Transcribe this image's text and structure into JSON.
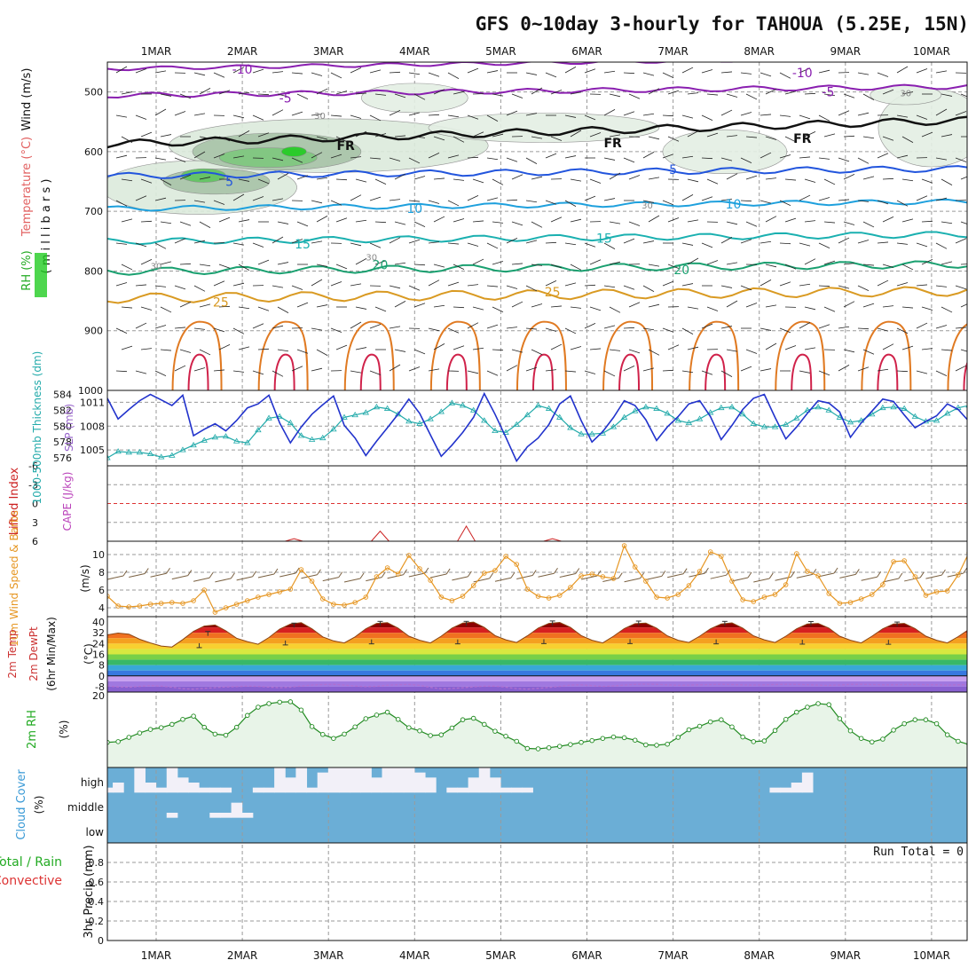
{
  "title": "GFS 0~10day 3-hourly for TAHOUA (5.25E, 15N)",
  "dates": [
    "1MAR",
    "2MAR",
    "3MAR",
    "4MAR",
    "5MAR",
    "6MAR",
    "7MAR",
    "8MAR",
    "9MAR",
    "10MAR"
  ],
  "colors": {
    "slp": "#2233cc",
    "thickness": "#22aaaa",
    "wind10m": "#e69622",
    "temp2m": "#8b4513",
    "dewpt": "#9966cc",
    "rh2m": "#228b22",
    "cloud_bg": "#6baed6",
    "lifted": "#cc2222",
    "cape": "#bb44bb",
    "rh_fill": "#b8d8b8"
  },
  "chart_data": [
    {
      "type": "contour",
      "panel": "upper_air",
      "ylabel": "( m i l l i b a r s )",
      "ylabel_parts": [
        "Wind (m/s)",
        "Temperature (°C)",
        "RH (%)"
      ],
      "y_ticks": [
        500,
        600,
        700,
        800,
        900,
        1000
      ],
      "ylim": [
        450,
        1000
      ],
      "isotherm_labels": [
        {
          "value": "-10",
          "date_frac": 1.0,
          "p": 462
        },
        {
          "value": "-10",
          "date_frac": 7.5,
          "p": 468
        },
        {
          "value": "-5",
          "date_frac": 1.5,
          "p": 510
        },
        {
          "value": "-5",
          "date_frac": 7.8,
          "p": 500
        },
        {
          "value": "FR",
          "date_frac": 2.2,
          "p": 590
        },
        {
          "value": "FR",
          "date_frac": 5.3,
          "p": 585
        },
        {
          "value": "FR",
          "date_frac": 7.5,
          "p": 578
        },
        {
          "value": "5",
          "date_frac": 0.85,
          "p": 650
        },
        {
          "value": "5",
          "date_frac": 6.0,
          "p": 630
        },
        {
          "value": "10",
          "date_frac": 3.0,
          "p": 695
        },
        {
          "value": "10",
          "date_frac": 6.7,
          "p": 688
        },
        {
          "value": "15",
          "date_frac": 1.7,
          "p": 755
        },
        {
          "value": "15",
          "date_frac": 5.2,
          "p": 745
        },
        {
          "value": "20",
          "date_frac": 2.6,
          "p": 790
        },
        {
          "value": "20",
          "date_frac": 6.1,
          "p": 798
        },
        {
          "value": "25",
          "date_frac": 0.75,
          "p": 852
        },
        {
          "value": "25",
          "date_frac": 4.6,
          "p": 835
        },
        {
          "value": "30",
          "date_frac": 1.9,
          "p": 538
        },
        {
          "value": "30",
          "date_frac": 8.7,
          "p": 500
        },
        {
          "value": "30",
          "date_frac": 2.5,
          "p": 775
        },
        {
          "value": "30",
          "date_frac": 5.7,
          "p": 688
        },
        {
          "value": "30",
          "date_frac": 0.0,
          "p": 790
        }
      ]
    },
    {
      "type": "line",
      "panel": "slp_thickness",
      "ylabel_left": "1000-500mb Thickness (dm)",
      "ylabel_right": "SLP (mb)",
      "thickness_ticks": [
        576,
        578,
        580,
        582,
        584
      ],
      "slp_ticks": [
        1005,
        1008,
        1011
      ],
      "ylim_thickness": [
        575,
        584.5
      ],
      "ylim_slp": [
        1003,
        1012.5
      ],
      "slp": [
        1011.5,
        1008.9,
        1010.1,
        1011.2,
        1012.0,
        1011.3,
        1010.6,
        1011.9,
        1006.8,
        1007.6,
        1008.3,
        1007.4,
        1008.7,
        1010.3,
        1010.8,
        1011.9,
        1008.4,
        1005.9,
        1007.9,
        1009.5,
        1010.7,
        1011.8,
        1008.1,
        1006.5,
        1004.3,
        1006.1,
        1007.8,
        1009.5,
        1011.4,
        1009.6,
        1006.9,
        1004.2,
        1005.6,
        1007.2,
        1009.1,
        1012.1,
        1009.5,
        1006.6,
        1003.6,
        1005.4,
        1006.5,
        1008.2,
        1010.8,
        1011.8,
        1008.7,
        1006.0,
        1007.3,
        1009.1,
        1011.2,
        1010.6,
        1008.8,
        1006.2,
        1007.9,
        1009.2,
        1010.8,
        1011.2,
        1009.2,
        1006.3,
        1008.1,
        1010.1,
        1011.5,
        1012.0,
        1009.1,
        1006.4,
        1007.9,
        1009.6,
        1011.2,
        1010.9,
        1009.8,
        1006.6,
        1008.4,
        1009.9,
        1011.4,
        1011.1,
        1009.4,
        1007.8,
        1008.6,
        1009.3,
        1010.8,
        1010.1,
        1008.6,
        1007.6,
        1009.4,
        1010.6
      ],
      "thickness": [
        576.0,
        576.8,
        576.7,
        576.7,
        576.5,
        576.1,
        576.3,
        577.0,
        577.6,
        578.2,
        578.6,
        578.7,
        578.1,
        577.9,
        579.5,
        581.0,
        581.2,
        580.4,
        578.8,
        578.3,
        578.5,
        579.6,
        581.1,
        581.4,
        581.7,
        582.4,
        582.2,
        581.5,
        580.6,
        580.3,
        580.9,
        581.8,
        582.9,
        582.6,
        582.0,
        580.7,
        579.4,
        579.2,
        580.2,
        581.4,
        582.6,
        582.2,
        581.1,
        579.8,
        579.0,
        579.0,
        579.1,
        579.9,
        581.1,
        581.9,
        582.4,
        582.2,
        581.6,
        580.7,
        580.4,
        580.9,
        581.7,
        582.3,
        582.4,
        581.5,
        580.3,
        579.9,
        579.9,
        580.2,
        581.0,
        582.0,
        582.4,
        582.0,
        581.1,
        580.5,
        580.7,
        581.5,
        582.3,
        582.4,
        582.2,
        581.2,
        580.6,
        580.7,
        581.6,
        582.3,
        582.6,
        582.4,
        582.1,
        581.4
      ]
    },
    {
      "type": "line",
      "panel": "stability",
      "ylabel": "Lifted Index",
      "ylabel_right": "CAPE (J/kg)",
      "y_ticks": [
        "-6",
        "-3",
        "0",
        "3",
        "6"
      ],
      "ylim": [
        -6,
        6
      ],
      "cape_spikes": [
        {
          "date_frac": 1.6,
          "value": 5.6
        },
        {
          "date_frac": 2.6,
          "value": 4.4
        },
        {
          "date_frac": 3.6,
          "value": 3.6
        },
        {
          "date_frac": 4.6,
          "value": 5.6
        }
      ]
    },
    {
      "type": "line",
      "panel": "wind10m",
      "ylabel": "10m Wind Speed & Barbs",
      "yunit": "(m/s)",
      "y_ticks": [
        4,
        6,
        8,
        10
      ],
      "ylim": [
        3,
        11.5
      ],
      "values": [
        5.3,
        4.2,
        4.1,
        4.2,
        4.4,
        4.5,
        4.6,
        4.5,
        4.8,
        6.0,
        3.5,
        4.0,
        4.4,
        4.8,
        5.2,
        5.5,
        5.8,
        6.1,
        8.3,
        7.0,
        5.0,
        4.4,
        4.3,
        4.6,
        5.2,
        7.5,
        8.5,
        7.8,
        9.9,
        8.4,
        7.1,
        5.2,
        4.8,
        5.3,
        6.5,
        7.9,
        8.2,
        9.8,
        8.9,
        6.1,
        5.3,
        5.1,
        5.4,
        6.3,
        7.6,
        7.8,
        7.5,
        7.3,
        11.0,
        8.6,
        7.0,
        5.2,
        5.1,
        5.5,
        6.5,
        8.1,
        10.3,
        9.8,
        7.0,
        4.9,
        4.7,
        5.2,
        5.5,
        6.6,
        10.1,
        8.1,
        7.6,
        5.6,
        4.5,
        4.6,
        5.0,
        5.5,
        6.6,
        9.2,
        9.3,
        7.5,
        5.4,
        5.8,
        5.9,
        7.7,
        10.2,
        10.8,
        9.4,
        7.0,
        5.7,
        5.4,
        5.3,
        5.2,
        5.6,
        5.9,
        6.1
      ]
    },
    {
      "type": "area",
      "panel": "temp2m",
      "ylabel_parts": [
        "2m Temp",
        "2m DewPt",
        "(6hr Min/Max)"
      ],
      "yunit": "(°C)",
      "y_ticks": [
        -8,
        0,
        8,
        16,
        24,
        32,
        40
      ],
      "ylim": [
        -12,
        44
      ],
      "temperature": [
        30.5,
        31.8,
        31.0,
        27.2,
        24.5,
        22.2,
        21.5,
        27.0,
        33.1,
        37.0,
        37.8,
        33.5,
        28.0,
        25.5,
        23.5,
        28.5,
        34.8,
        38.5,
        39.5,
        35.0,
        29.0,
        26.0,
        24.5,
        29.0,
        35.0,
        39.0,
        39.6,
        35.5,
        29.5,
        26.5,
        24.5,
        29.5,
        35.5,
        39.2,
        40.0,
        36.0,
        30.0,
        26.8,
        24.8,
        29.8,
        35.5,
        39.0,
        39.7,
        36.0,
        30.0,
        26.5,
        24.5,
        29.5,
        35.2,
        38.8,
        39.2,
        35.5,
        29.8,
        26.5,
        24.8,
        29.5,
        35.0,
        38.5,
        39.4,
        35.5,
        29.8,
        26.8,
        24.8,
        29.5,
        35.0,
        38.5,
        39.0,
        35.5,
        29.5,
        26.5,
        24.5,
        29.5,
        35.0,
        38.6,
        39.0,
        35.2,
        29.5,
        26.5,
        24.5,
        29.2,
        34.5,
        37.5,
        38.0,
        34.5,
        29.0,
        26.2,
        24.0,
        23.2
      ],
      "dewpoint": [
        -7.5,
        -8.2,
        -8.4,
        -7.8,
        -7.1,
        -7.6,
        -8.4,
        -9.5,
        -9.8,
        -9.2,
        -8.7,
        -8.2,
        -8.0,
        -7.5,
        -7.8,
        -8.3,
        -8.8,
        -8.4,
        -7.5,
        -6.8,
        -6.4,
        -6.2,
        -6.8,
        -7.5,
        -8.0,
        -7.7,
        -6.9,
        -6.5,
        -6.3,
        -7.0,
        -8.5,
        -9.6,
        -9.3,
        -8.8,
        -8.1,
        -7.6,
        -7.6,
        -8.4,
        -9.4,
        -9.8,
        -9.2,
        -8.6,
        -7.8,
        -6.8,
        -6.6,
        -7.2,
        -7.8,
        -7.4,
        -6.8,
        -6.3,
        -6.1,
        -6.3,
        -6.6,
        -6.9,
        -6.8,
        -6.6,
        -6.4,
        -6.2,
        -6.4,
        -6.6,
        -6.8,
        -6.6,
        -6.4,
        -6.2,
        -6.3,
        -6.5,
        -6.8,
        -7.0,
        -6.7,
        -6.3,
        -6.2,
        -6.4,
        -6.6,
        -6.6,
        -6.4,
        -6.3,
        -6.5,
        -6.6,
        -6.8,
        -6.6,
        -6.4,
        -6.3,
        -6.5,
        -6.8,
        -6.6,
        -6.4,
        -6.3,
        -6.5,
        -6.6
      ],
      "max_markers": [
        {
          "date_frac": 0.6,
          "value": 33.0
        },
        {
          "date_frac": 1.6,
          "value": 39.2
        },
        {
          "date_frac": 2.6,
          "value": 40.5
        },
        {
          "date_frac": 3.6,
          "value": 40.5
        },
        {
          "date_frac": 4.6,
          "value": 40.8
        },
        {
          "date_frac": 5.6,
          "value": 40.7
        },
        {
          "date_frac": 6.6,
          "value": 40.5
        },
        {
          "date_frac": 7.6,
          "value": 40.4
        },
        {
          "date_frac": 8.6,
          "value": 40.0
        },
        {
          "date_frac": 9.6,
          "value": 39.8
        }
      ],
      "min_markers": [
        {
          "date_frac": 0.5,
          "value": 21.0
        },
        {
          "date_frac": 1.5,
          "value": 23.0
        },
        {
          "date_frac": 2.5,
          "value": 23.8
        },
        {
          "date_frac": 3.5,
          "value": 23.8
        },
        {
          "date_frac": 4.5,
          "value": 24.0
        },
        {
          "date_frac": 5.5,
          "value": 24.0
        },
        {
          "date_frac": 6.5,
          "value": 23.8
        },
        {
          "date_frac": 7.5,
          "value": 23.6
        },
        {
          "date_frac": 8.5,
          "value": 23.5
        },
        {
          "date_frac": 9.5,
          "value": 23.4
        }
      ]
    },
    {
      "type": "area",
      "panel": "rh2m",
      "ylabel": "2m RH",
      "yunit": "(%)",
      "y_ticks": [
        20
      ],
      "ylim": [
        0,
        21
      ],
      "values": [
        7.0,
        7.2,
        8.4,
        9.6,
        10.6,
        11.1,
        12.0,
        13.4,
        14.3,
        11.2,
        9.3,
        9.0,
        11.2,
        14.5,
        16.8,
        17.8,
        18.2,
        18.3,
        16.0,
        11.4,
        9.2,
        8.1,
        9.3,
        11.3,
        13.6,
        14.6,
        15.4,
        13.4,
        11.1,
        10.2,
        8.9,
        9.1,
        11.0,
        13.3,
        13.7,
        12.0,
        10.1,
        8.7,
        7.3,
        5.3,
        5.2,
        5.5,
        5.9,
        6.4,
        7.0,
        7.5,
        8.1,
        8.5,
        8.3,
        7.6,
        6.3,
        6.2,
        6.5,
        8.4,
        10.5,
        11.5,
        12.7,
        13.3,
        11.3,
        8.5,
        7.2,
        7.4,
        10.3,
        13.4,
        15.4,
        16.8,
        17.8,
        17.5,
        13.6,
        10.2,
        8.1,
        7.1,
        7.9,
        10.4,
        12.2,
        13.3,
        13.3,
        12.2,
        9.1,
        7.3,
        6.4,
        7.8,
        9.8,
        11.6,
        12.9,
        12.9,
        11.3,
        9.1,
        7.6,
        7.3,
        8.5,
        10.2,
        12.3,
        13.6,
        13.8
      ]
    },
    {
      "type": "bar",
      "panel": "cloud_cover",
      "ylabel": "Cloud Cover",
      "yunit": "(%)",
      "levels": [
        "high",
        "middle",
        "low"
      ],
      "high": [
        20,
        40,
        0,
        100,
        40,
        20,
        100,
        60,
        40,
        20,
        20,
        20,
        0,
        0,
        20,
        20,
        100,
        60,
        100,
        20,
        80,
        100,
        100,
        100,
        100,
        60,
        100,
        100,
        100,
        80,
        60,
        0,
        20,
        20,
        60,
        100,
        60,
        20,
        20,
        20,
        0,
        0,
        0,
        0,
        0,
        0,
        0,
        0,
        0,
        0,
        0,
        0,
        0,
        0,
        0,
        0,
        0,
        0,
        0,
        0,
        0,
        0,
        20,
        20,
        40,
        80,
        0,
        0,
        0,
        0,
        0,
        0,
        0,
        0,
        0,
        0,
        0,
        0,
        0,
        0,
        0,
        0,
        0,
        0,
        0,
        0,
        0,
        0,
        0,
        0
      ],
      "middle": [
        0,
        0,
        0,
        0,
        0,
        0,
        20,
        0,
        0,
        0,
        20,
        20,
        60,
        20,
        0,
        0,
        0,
        0,
        0,
        0,
        0,
        0,
        0,
        0,
        0,
        0,
        0,
        0,
        0,
        0,
        0,
        0,
        0,
        0,
        0,
        0,
        0,
        0,
        0,
        0,
        0,
        0,
        0,
        0,
        0,
        0,
        0,
        0,
        0,
        0,
        0,
        0,
        0,
        0,
        0,
        0,
        0,
        0,
        0,
        0,
        0,
        0,
        0,
        0,
        0,
        0,
        0,
        0,
        0,
        0,
        0,
        0,
        0,
        0,
        0,
        0,
        0,
        0,
        0,
        0,
        0,
        0,
        0,
        0,
        0,
        0,
        0,
        0,
        0,
        0
      ]
    },
    {
      "type": "bar",
      "panel": "precip",
      "ylabel": "3hr Precip (mm)",
      "legend_parts": [
        "Total / Rain",
        "Convective"
      ],
      "y_ticks": [
        "0",
        "0.2",
        "0.4",
        "0.6",
        "0.8"
      ],
      "ylim": [
        0,
        1
      ],
      "run_total_label": "Run Total = 0",
      "values": []
    }
  ]
}
